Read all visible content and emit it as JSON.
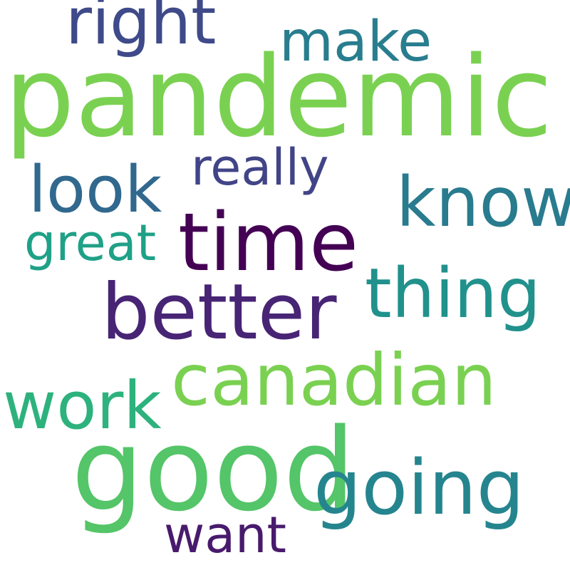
{
  "background": "#ffffff",
  "words": [
    {
      "text": "pandemic",
      "color": "#7ad151"
    },
    {
      "text": "good",
      "color": "#54c568"
    },
    {
      "text": "time",
      "color": "#440154"
    },
    {
      "text": "better",
      "color": "#482475"
    },
    {
      "text": "canadian",
      "color": "#7ad151"
    },
    {
      "text": "going",
      "color": "#25858e"
    },
    {
      "text": "thing",
      "color": "#21918c"
    },
    {
      "text": "know",
      "color": "#297b8e"
    },
    {
      "text": "work",
      "color": "#2db27d"
    },
    {
      "text": "right",
      "color": "#3e4a89"
    },
    {
      "text": "look",
      "color": "#31688e"
    },
    {
      "text": "make",
      "color": "#287d8e"
    },
    {
      "text": "really",
      "color": "#414487"
    },
    {
      "text": "great",
      "color": "#1fa187"
    },
    {
      "text": "want",
      "color": "#481a6c"
    }
  ]
}
